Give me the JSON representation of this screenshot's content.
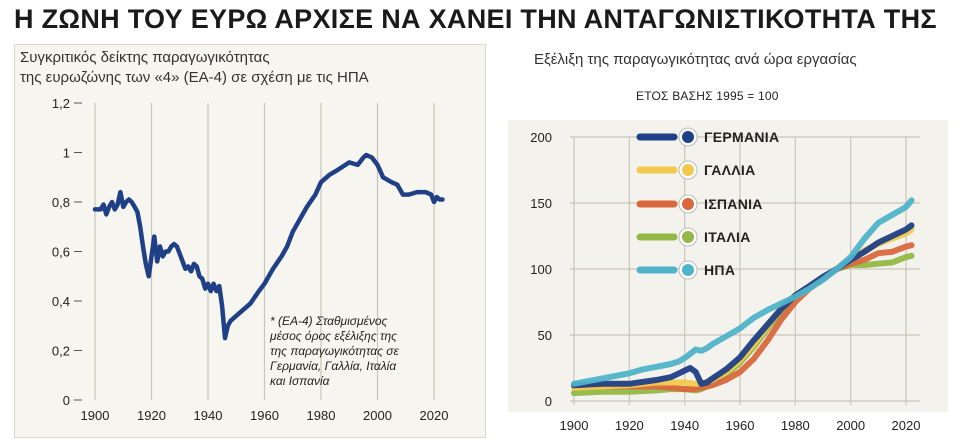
{
  "title": "Η ΖΩΝΗ ΤΟΥ ΕΥΡΩ ΑΡΧΙΣΕ ΝΑ ΧΑΝΕΙ ΤΗΝ ΑΝΤΑΓΩΝΙΣΤΙΚΟΤΗΤΑ ΤΗΣ",
  "left": {
    "subtitle_line1": "Συγκριτικός δείκτης παραγωγικότητας",
    "subtitle_line2": "της ευρωζώνης των «4» (ΕΑ-4) σε σχέση με τις ΗΠΑ",
    "note_line1": "* (ΕΑ-4) Σταθμισμένος",
    "note_line2": "μέσος όρος εξέλιξης της",
    "note_line3": "της παραγωγικότητας σε",
    "note_line4": "Γερμανία, Γαλλία, Ιταλία",
    "note_line5": "και Ισπανία"
  },
  "right": {
    "subtitle": "Εξέλιξη της παραγωγικότητας ανά ώρα εργασίας",
    "base_label": "ΕΤΟΣ ΒΑΣΗΣ 1995 = 100"
  },
  "colors": {
    "navy": "#1f3f86",
    "germany": "#1f3f86",
    "france": "#f2c94c",
    "spain": "#d9683d",
    "italy": "#93b847",
    "usa": "#4fb3c9",
    "grid": "#c9c5b8"
  },
  "chart_data": [
    {
      "type": "line",
      "title": "",
      "xlabel": "",
      "ylabel": "",
      "xlim": [
        1895,
        2025
      ],
      "ylim": [
        0,
        1.2
      ],
      "yticks": [
        "0",
        "0,2",
        "0,4",
        "0,6",
        "0,8",
        "1",
        "1,2"
      ],
      "xticks": [
        "1900",
        "1920",
        "1940",
        "1960",
        "1980",
        "2000",
        "2020"
      ],
      "grid": "vertical",
      "series": [
        {
          "x": [
            1900,
            1902,
            1903,
            1904,
            1905,
            1906,
            1907,
            1908,
            1909,
            1910,
            1911,
            1912,
            1913,
            1914,
            1915,
            1916,
            1917,
            1918,
            1919,
            1920,
            1921,
            1922,
            1923,
            1924,
            1925,
            1926,
            1927,
            1928,
            1929,
            1930,
            1931,
            1932,
            1933,
            1934,
            1935,
            1936,
            1937,
            1938,
            1939,
            1940,
            1941,
            1942,
            1943,
            1944,
            1945,
            1946,
            1947,
            1948,
            1950,
            1952,
            1955,
            1958,
            1960,
            1963,
            1966,
            1968,
            1970,
            1972,
            1975,
            1978,
            1980,
            1983,
            1986,
            1990,
            1993,
            1995,
            1996,
            1998,
            2000,
            2002,
            2005,
            2007,
            2009,
            2011,
            2014,
            2017,
            2019,
            2020,
            2021,
            2022,
            2023
          ],
          "y": [
            0.77,
            0.77,
            0.79,
            0.75,
            0.78,
            0.8,
            0.77,
            0.79,
            0.84,
            0.78,
            0.8,
            0.81,
            0.8,
            0.78,
            0.76,
            0.7,
            0.62,
            0.55,
            0.5,
            0.58,
            0.66,
            0.56,
            0.62,
            0.58,
            0.6,
            0.6,
            0.62,
            0.63,
            0.62,
            0.59,
            0.56,
            0.53,
            0.54,
            0.52,
            0.55,
            0.54,
            0.5,
            0.49,
            0.45,
            0.47,
            0.44,
            0.47,
            0.44,
            0.46,
            0.38,
            0.25,
            0.3,
            0.32,
            0.34,
            0.36,
            0.39,
            0.44,
            0.47,
            0.53,
            0.58,
            0.62,
            0.68,
            0.72,
            0.78,
            0.83,
            0.88,
            0.91,
            0.93,
            0.96,
            0.95,
            0.98,
            0.99,
            0.98,
            0.95,
            0.9,
            0.88,
            0.87,
            0.83,
            0.83,
            0.84,
            0.84,
            0.83,
            0.8,
            0.82,
            0.81,
            0.81
          ]
        }
      ]
    },
    {
      "type": "line",
      "title": "",
      "xlabel": "",
      "ylabel": "",
      "xlim": [
        1895,
        2025
      ],
      "ylim": [
        0,
        200
      ],
      "yticks": [
        "0",
        "50",
        "100",
        "150",
        "200"
      ],
      "xticks": [
        "1900",
        "1920",
        "1940",
        "1960",
        "1980",
        "2000",
        "2020"
      ],
      "grid": "both",
      "legend_position": "top-left",
      "series": [
        {
          "name": "ΓΕΡΜΑΝΙΑ",
          "x": [
            1900,
            1910,
            1920,
            1930,
            1935,
            1938,
            1940,
            1942,
            1944,
            1946,
            1948,
            1950,
            1955,
            1960,
            1965,
            1970,
            1975,
            1980,
            1985,
            1990,
            1995,
            2000,
            2005,
            2010,
            2015,
            2020,
            2022
          ],
          "y": [
            12,
            13,
            13,
            16,
            18,
            21,
            23,
            25,
            22,
            13,
            14,
            17,
            24,
            33,
            46,
            58,
            70,
            80,
            87,
            94,
            100,
            107,
            113,
            120,
            125,
            130,
            133
          ]
        },
        {
          "name": "ΓΑΛΛΙΑ",
          "x": [
            1900,
            1910,
            1920,
            1930,
            1935,
            1940,
            1944,
            1946,
            1950,
            1955,
            1960,
            1965,
            1970,
            1975,
            1980,
            1985,
            1990,
            1995,
            2000,
            2005,
            2010,
            2015,
            2020,
            2022
          ],
          "y": [
            10,
            11,
            12,
            14,
            14,
            14,
            13,
            13,
            16,
            22,
            31,
            43,
            57,
            71,
            80,
            87,
            94,
            100,
            107,
            114,
            119,
            123,
            127,
            130
          ]
        },
        {
          "name": "ΙΣΠΑΝΙΑ",
          "x": [
            1900,
            1910,
            1920,
            1930,
            1935,
            1940,
            1944,
            1946,
            1950,
            1955,
            1960,
            1965,
            1970,
            1975,
            1980,
            1985,
            1990,
            1995,
            2000,
            2005,
            2010,
            2015,
            2020,
            2022
          ],
          "y": [
            11,
            11,
            11,
            11,
            10,
            9,
            9,
            10,
            12,
            16,
            22,
            32,
            46,
            62,
            75,
            85,
            93,
            100,
            104,
            107,
            112,
            113,
            117,
            118
          ]
        },
        {
          "name": "ΙΤΑΛΙΑ",
          "x": [
            1900,
            1910,
            1920,
            1930,
            1935,
            1940,
            1944,
            1946,
            1950,
            1955,
            1960,
            1965,
            1970,
            1975,
            1980,
            1985,
            1990,
            1995,
            2000,
            2005,
            2010,
            2015,
            2020,
            2022
          ],
          "y": [
            6,
            7,
            7,
            8,
            9,
            9,
            8,
            9,
            13,
            20,
            29,
            41,
            55,
            68,
            79,
            86,
            93,
            100,
            103,
            103,
            104,
            105,
            109,
            110
          ]
        },
        {
          "name": "ΗΠΑ",
          "x": [
            1900,
            1905,
            1910,
            1915,
            1920,
            1925,
            1930,
            1935,
            1938,
            1941,
            1944,
            1946,
            1948,
            1950,
            1955,
            1960,
            1965,
            1970,
            1975,
            1980,
            1985,
            1990,
            1995,
            2000,
            2005,
            2010,
            2015,
            2020,
            2022
          ],
          "y": [
            13,
            15,
            17,
            19,
            21,
            24,
            26,
            28,
            30,
            34,
            39,
            38,
            40,
            43,
            49,
            55,
            63,
            69,
            74,
            79,
            85,
            92,
            100,
            109,
            123,
            135,
            141,
            147,
            152
          ]
        }
      ]
    }
  ]
}
